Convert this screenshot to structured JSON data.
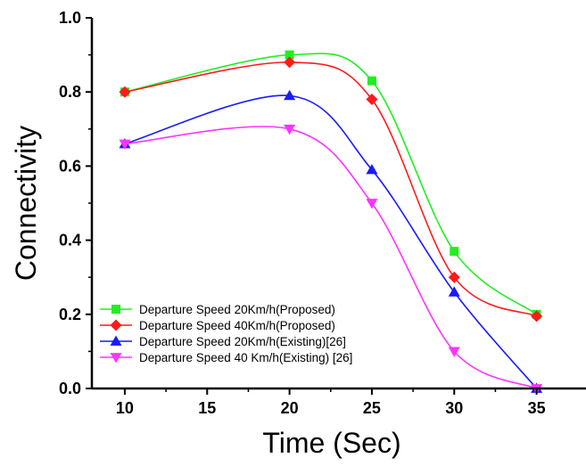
{
  "chart_data": {
    "type": "line",
    "xlabel": "Time (Sec)",
    "ylabel": "Connectivity",
    "x": [
      10,
      20,
      25,
      30,
      35
    ],
    "xlim": [
      8,
      38
    ],
    "ylim": [
      0,
      1.0
    ],
    "x_ticks": [
      "10",
      "15",
      "20",
      "25",
      "30",
      "35"
    ],
    "y_ticks": [
      "0.0",
      "0.2",
      "0.4",
      "0.6",
      "0.8",
      "1.0"
    ],
    "grid": false,
    "legend_position": "bottom-left",
    "series": [
      {
        "name": "Departure Speed 20Km/h(Proposed)",
        "color": "#22ee22",
        "marker": "square",
        "values": [
          0.8,
          0.9,
          0.83,
          0.37,
          0.2
        ]
      },
      {
        "name": "Departure Speed 40Km/h(Proposed)",
        "color": "#ff1a1a",
        "marker": "diamond",
        "values": [
          0.8,
          0.88,
          0.78,
          0.3,
          0.195
        ]
      },
      {
        "name": "Departure Speed 20Km/h(Existing)[26]",
        "color": "#1a1aff",
        "marker": "triangle-up",
        "values": [
          0.66,
          0.79,
          0.59,
          0.26,
          0.0
        ]
      },
      {
        "name": "Departure Speed 40 Km/h(Existing) [26]",
        "color": "#ff33ff",
        "marker": "triangle-down",
        "values": [
          0.66,
          0.7,
          0.5,
          0.1,
          0.0
        ]
      }
    ]
  }
}
